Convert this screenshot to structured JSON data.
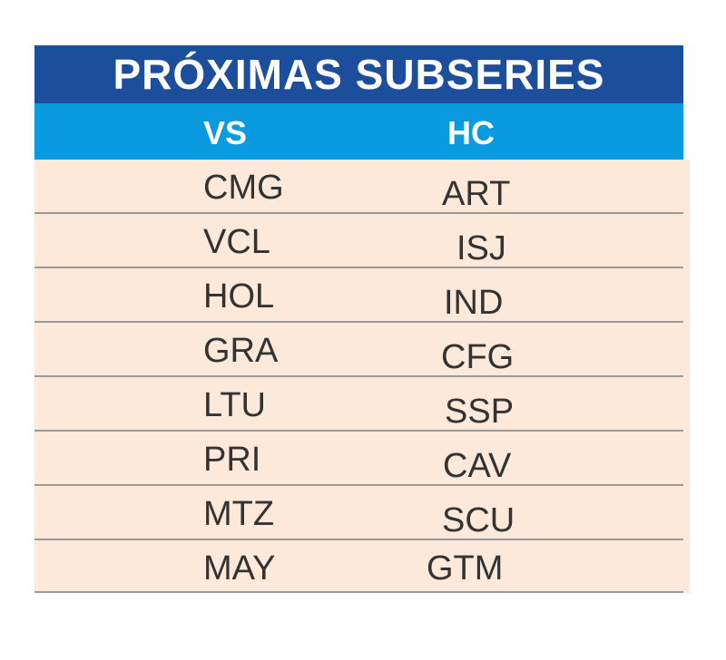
{
  "title": "PRÓXIMAS SUBSERIES",
  "headers": {
    "vs": "VS",
    "hc": "HC"
  },
  "rows": [
    {
      "vs": "CMG",
      "hc": "ART"
    },
    {
      "vs": "VCL",
      "hc": "ISJ"
    },
    {
      "vs": "HOL",
      "hc": "IND"
    },
    {
      "vs": "GRA",
      "hc": "CFG"
    },
    {
      "vs": "LTU",
      "hc": "SSP"
    },
    {
      "vs": "PRI",
      "hc": "CAV"
    },
    {
      "vs": "MTZ",
      "hc": "SCU"
    },
    {
      "vs": "MAY",
      "hc": "GTM"
    }
  ],
  "colors": {
    "title_bg": "#1c4e9c",
    "header_bg": "#0a9ae0",
    "body_bg": "#fce9d9",
    "divider": "#9a9a9a",
    "text": "#333333"
  }
}
